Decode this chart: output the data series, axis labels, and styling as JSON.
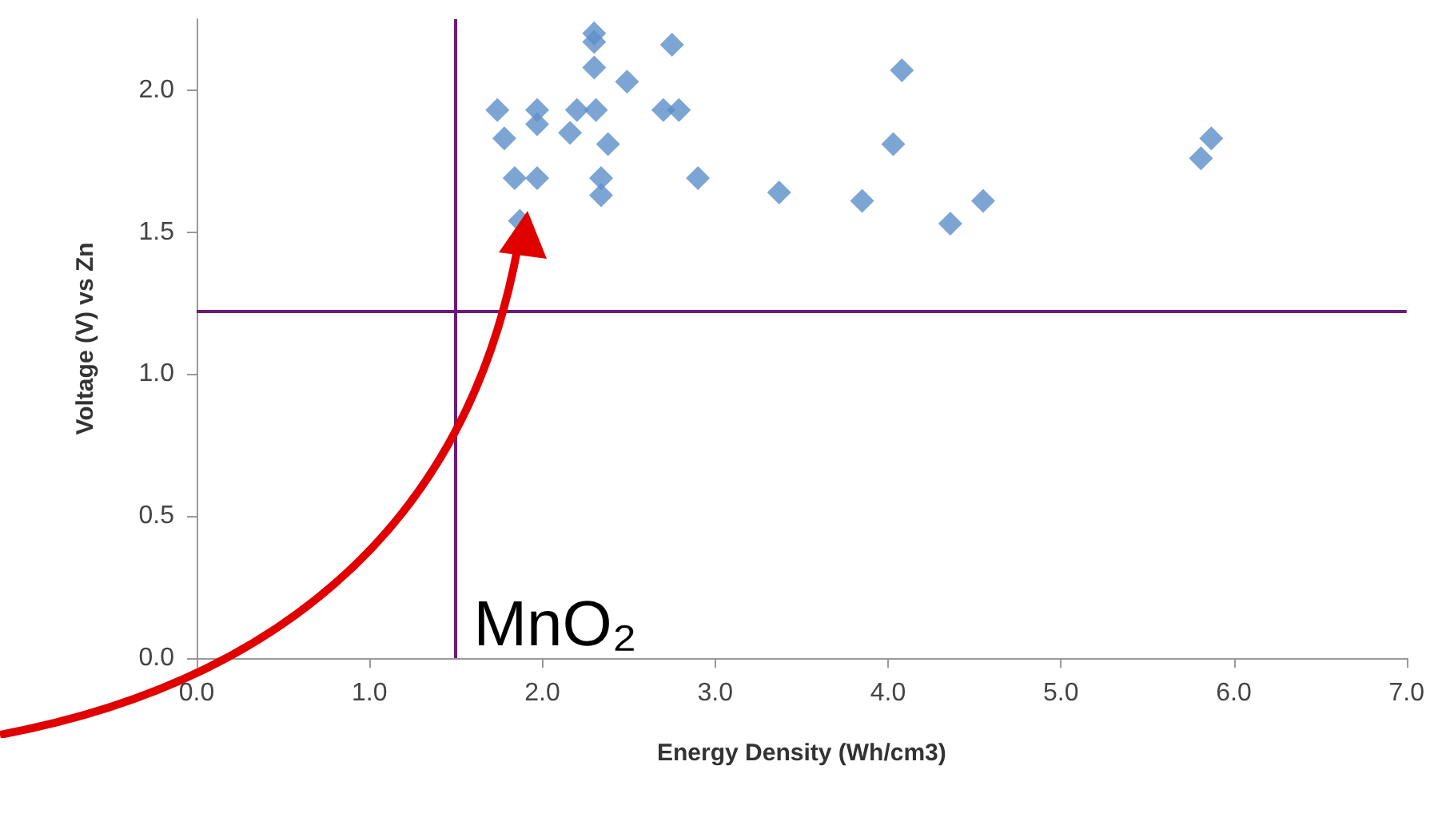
{
  "chart_data": {
    "type": "scatter",
    "xlabel": "Energy Density (Wh/cm3)",
    "ylabel": "Voltage (V) vs Zn",
    "xlim": [
      0,
      7
    ],
    "ylim": [
      0,
      2.25
    ],
    "xticks": [
      {
        "value": 0,
        "label": "0.0"
      },
      {
        "value": 1,
        "label": "1.0"
      },
      {
        "value": 2,
        "label": "2.0"
      },
      {
        "value": 3,
        "label": "3.0"
      },
      {
        "value": 4,
        "label": "4.0"
      },
      {
        "value": 5,
        "label": "5.0"
      },
      {
        "value": 6,
        "label": "6.0"
      },
      {
        "value": 7,
        "label": "7.0"
      }
    ],
    "yticks": [
      {
        "value": 0,
        "label": "0.0"
      },
      {
        "value": 0.5,
        "label": "0.5"
      },
      {
        "value": 1,
        "label": "1.0"
      },
      {
        "value": 1.5,
        "label": "1.5"
      },
      {
        "value": 2,
        "label": "2.0"
      }
    ],
    "marker": "diamond",
    "series": [
      {
        "color": "#5b8fc9",
        "x": [
          2.3,
          2.3,
          2.3,
          2.75,
          2.49,
          4.08,
          1.74,
          1.97,
          2.31,
          2.2,
          2.79,
          2.7,
          1.78,
          2.16,
          2.38,
          1.97,
          4.03,
          1.84,
          1.97,
          2.34,
          2.34,
          2.9,
          3.37,
          3.85,
          1.87,
          5.87,
          5.81,
          4.55,
          4.36
        ],
        "values": [
          2.2,
          2.17,
          2.08,
          2.16,
          2.03,
          2.07,
          1.93,
          1.93,
          1.93,
          1.93,
          1.93,
          1.93,
          1.83,
          1.85,
          1.81,
          1.88,
          1.81,
          1.69,
          1.69,
          1.69,
          1.63,
          1.69,
          1.64,
          1.61,
          1.54,
          1.83,
          1.76,
          1.61,
          1.53
        ]
      }
    ],
    "ref_lines": [
      {
        "axis": "x",
        "value": 1.5,
        "color": "#6b1a7a"
      },
      {
        "axis": "y",
        "value": 1.22,
        "color": "#6b1a7a"
      }
    ],
    "annotations": [
      {
        "text": "MnO₂",
        "x": 1.5,
        "y": 0
      }
    ]
  }
}
